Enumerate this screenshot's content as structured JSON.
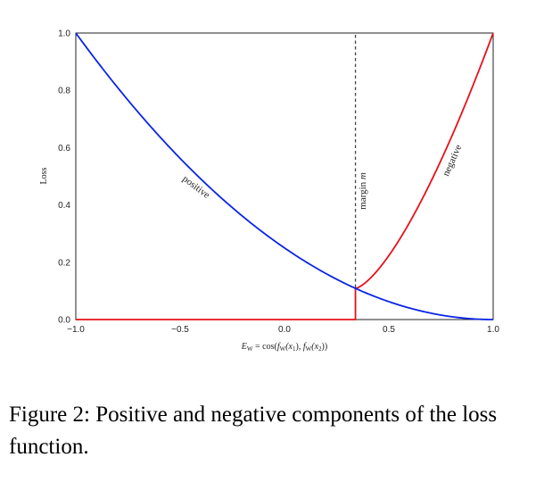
{
  "chart_data": {
    "type": "line",
    "xlabel": "E_W = cos(f_W(x_1), f_W(x_2))",
    "xlabel_parts": {
      "E": "E",
      "W": "W",
      "eq": " = cos(",
      "f1": "f",
      "W1": "W",
      "x1": "(x",
      "sub1": "1",
      "mid": "), ",
      "f2": "f",
      "W2": "W",
      "x2": "(x",
      "sub2": "2",
      "end": "))"
    },
    "ylabel": "Loss",
    "xlim": [
      -1.0,
      1.0
    ],
    "ylim": [
      0.0,
      1.0
    ],
    "xticks": [
      -1.0,
      -0.5,
      0.0,
      0.5,
      1.0
    ],
    "xtick_labels": [
      "−1.0",
      "−0.5",
      "0.0",
      "0.5",
      "1.0"
    ],
    "yticks": [
      0.0,
      0.2,
      0.4,
      0.6,
      0.8,
      1.0
    ],
    "ytick_labels": [
      "0.0",
      "0.2",
      "0.4",
      "0.6",
      "0.8",
      "1.0"
    ],
    "grid": false,
    "margin_line": {
      "x": 0.34,
      "label": "margin m",
      "label_text": "margin ",
      "label_var": "m",
      "color": "#444444"
    },
    "series": [
      {
        "name": "positive",
        "color": "#0a24e6",
        "x": [
          -1.0,
          -0.9,
          -0.8,
          -0.7,
          -0.6,
          -0.5,
          -0.4,
          -0.3,
          -0.2,
          -0.1,
          0.0,
          0.1,
          0.2,
          0.3,
          0.34,
          0.4,
          0.5,
          0.6,
          0.7,
          0.8,
          0.9,
          1.0
        ],
        "y": [
          1.0,
          0.9025,
          0.81,
          0.7225,
          0.64,
          0.5625,
          0.49,
          0.4225,
          0.36,
          0.3025,
          0.25,
          0.2025,
          0.16,
          0.1225,
          0.1089,
          0.09,
          0.0625,
          0.04,
          0.0225,
          0.01,
          0.0025,
          0.0
        ]
      },
      {
        "name": "negative",
        "color": "#e8101a",
        "x": [
          -1.0,
          0.34,
          0.34,
          0.4,
          0.5,
          0.6,
          0.7,
          0.8,
          0.9,
          1.0
        ],
        "y": [
          0.0,
          0.0,
          0.1089,
          0.1575,
          0.2441,
          0.3487,
          0.4711,
          0.6115,
          0.7697,
          1.0
        ]
      }
    ]
  },
  "caption": "Figure 2: Positive and negative components of the loss function."
}
